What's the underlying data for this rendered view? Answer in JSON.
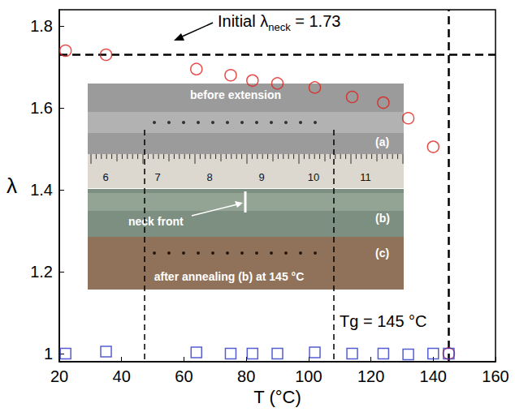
{
  "chart_data": {
    "type": "scatter",
    "x_label": "T (°C)",
    "y_label": "λ",
    "xlim": [
      20,
      160
    ],
    "xticks": [
      20,
      40,
      60,
      80,
      100,
      120,
      140,
      160
    ],
    "ylim": [
      0.98,
      1.84
    ],
    "yticks": [
      1,
      1.2,
      1.4,
      1.6,
      1.8
    ],
    "grid": false,
    "x": [
      22,
      35,
      64,
      75,
      82,
      90,
      102,
      114,
      124,
      132,
      140,
      145
    ],
    "series": [
      {
        "color": "#e0201b",
        "marker": "circle",
        "values": [
          1.74,
          1.73,
          1.695,
          1.68,
          1.667,
          1.66,
          1.65,
          1.627,
          1.613,
          1.575,
          1.505,
          1.0
        ]
      },
      {
        "color": "#2b35c8",
        "marker": "square",
        "values": [
          1.0,
          1.005,
          1.003,
          1.0,
          1.0,
          1.0,
          1.003,
          1.0,
          1.0,
          0.998,
          1.0,
          1.0
        ]
      }
    ],
    "reference_lines": [
      {
        "axis": "y",
        "value": 1.73,
        "line_style": "dashed"
      },
      {
        "axis": "x",
        "value": 145,
        "line_style": "dashed"
      }
    ],
    "annotations": [
      {
        "text": "Initial λ",
        "subscript": "neck",
        "suffix": " = 1.73"
      },
      {
        "text": "Tg = 145 °C"
      }
    ],
    "inset": [
      {
        "caption": "before extension",
        "tag": "(a)",
        "ruler": [
          6,
          7,
          8,
          9,
          10,
          11
        ]
      },
      {
        "pointer": "neck front",
        "tag": "(b)"
      },
      {
        "caption": "after annealing (b) at 145 °C",
        "tag": "(c)"
      }
    ]
  }
}
